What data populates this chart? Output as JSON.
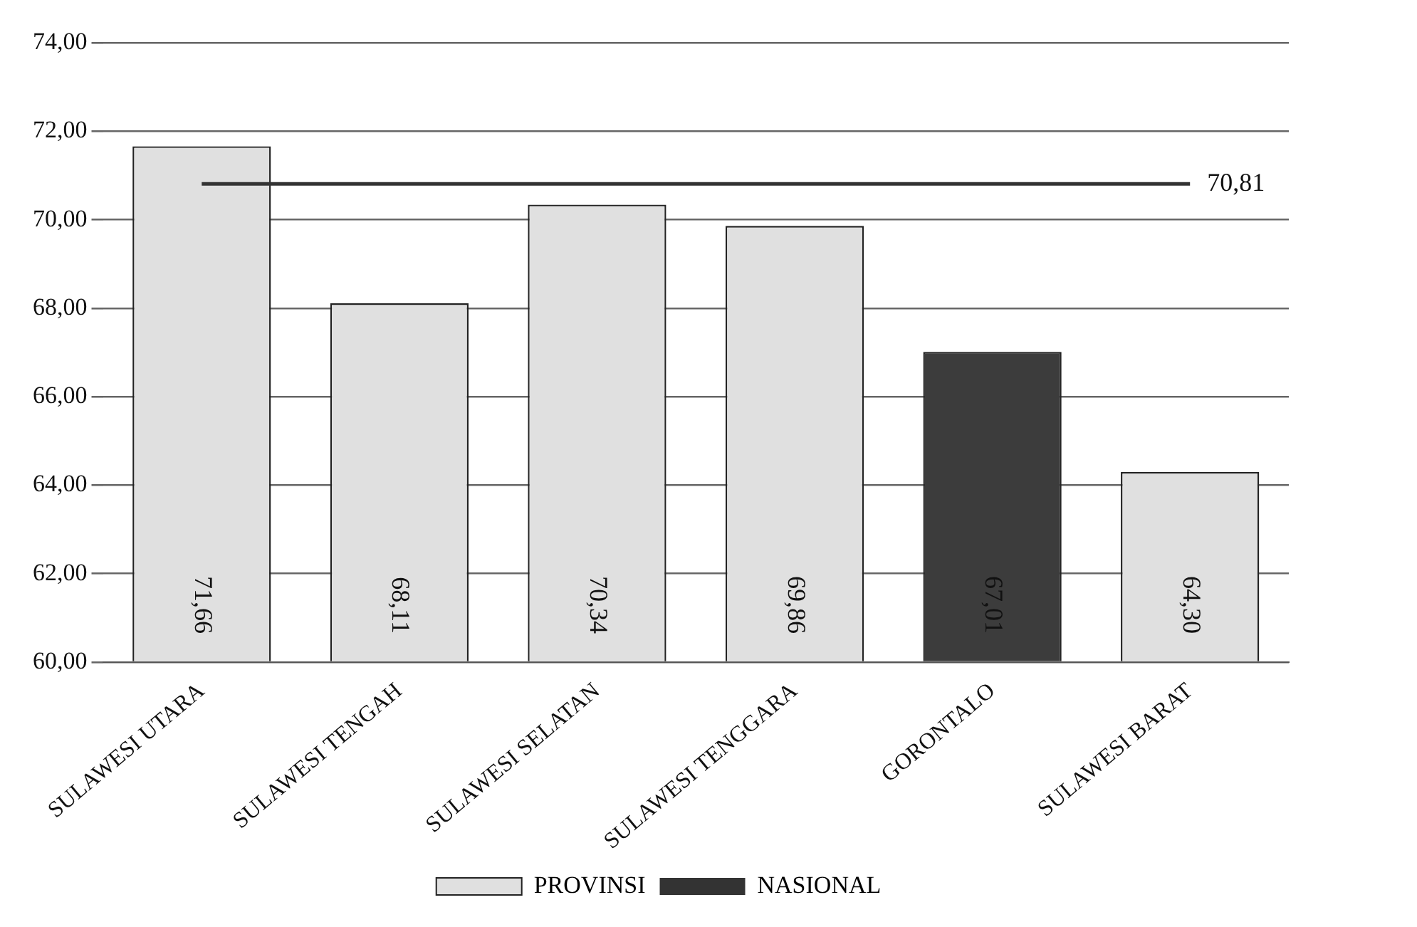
{
  "chart_data": {
    "type": "bar",
    "categories": [
      "SULAWESI UTARA",
      "SULAWESI TENGAH",
      "SULAWESI SELATAN",
      "SULAWESI TENGGARA",
      "GORONTALO",
      "SULAWESI BARAT"
    ],
    "series": [
      {
        "name": "PROVINSI",
        "colors": [
          "#e0e0e0",
          "#e0e0e0",
          "#e0e0e0",
          "#e0e0e0",
          "#3c3c3c",
          "#e0e0e0"
        ],
        "values": [
          71.66,
          68.11,
          70.34,
          69.86,
          67.01,
          64.3
        ],
        "value_labels": [
          "71,66",
          "68,11",
          "70,34",
          "69,86",
          "67,01",
          "64,30"
        ]
      },
      {
        "name": "NASIONAL",
        "type": "line",
        "color": "#333333",
        "values": [
          70.81,
          70.81,
          70.81,
          70.81,
          70.81,
          70.81
        ],
        "value_labels": [
          null,
          null,
          null,
          null,
          null,
          "70,81"
        ]
      }
    ],
    "ylim": [
      60,
      74
    ],
    "yticks": [
      {
        "value": 60,
        "label": "60,00"
      },
      {
        "value": 62,
        "label": "62,00"
      },
      {
        "value": 64,
        "label": "64,00"
      },
      {
        "value": 66,
        "label": "66,00"
      },
      {
        "value": 68,
        "label": "68,00"
      },
      {
        "value": 70,
        "label": "70,00"
      },
      {
        "value": 72,
        "label": "72,00"
      },
      {
        "value": 74,
        "label": "74,00"
      }
    ],
    "grid": "y",
    "legend": "bottom",
    "marker": "none"
  }
}
